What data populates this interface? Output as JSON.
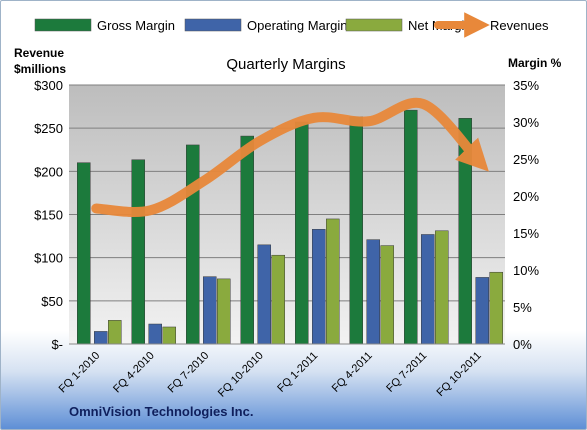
{
  "company": "OmniVision Technologies Inc.",
  "colors": {
    "gross_margin": "#1c7a3c",
    "operating_margin": "#3f64a8",
    "net_margin": "#8aaa3e",
    "revenues": "#e8883a",
    "plot_bg_top": "#bdbdbd",
    "plot_bg_bottom": "#f2f2f2"
  },
  "chart_data": {
    "type": "bar",
    "title": "Quarterly Margins",
    "ylabel_left": [
      "Revenue",
      "$millions"
    ],
    "ylabel_right": "Margin %",
    "categories": [
      "FQ 1-2010",
      "FQ 4-2010",
      "FQ 7-2010",
      "FQ 10-2010",
      "FQ 1-2011",
      "FQ 4-2011",
      "FQ 7-2011",
      "FQ 10-2011"
    ],
    "series": [
      {
        "name": "Gross Margin",
        "kind": "bar",
        "axis": "right",
        "values": [
          24.5,
          24.9,
          26.9,
          28.1,
          30.0,
          30.7,
          31.6,
          30.5
        ]
      },
      {
        "name": "Operating Margin",
        "kind": "bar",
        "axis": "right",
        "values": [
          1.7,
          2.7,
          9.1,
          13.4,
          15.5,
          14.1,
          14.8,
          9.0
        ]
      },
      {
        "name": "Net Margin",
        "kind": "bar",
        "axis": "right",
        "values": [
          3.2,
          2.3,
          8.8,
          12.0,
          16.9,
          13.3,
          15.3,
          9.7
        ]
      },
      {
        "name": "Revenues",
        "kind": "line",
        "axis": "left",
        "values": [
          157,
          155,
          190,
          235,
          262,
          258,
          278,
          213
        ]
      }
    ],
    "ylim_left": [
      0,
      300
    ],
    "ylim_right": [
      0,
      35
    ],
    "yticks_left": [
      "$-",
      "$50",
      "$100",
      "$150",
      "$200",
      "$250",
      "$300"
    ],
    "yticks_right": [
      "0%",
      "5%",
      "10%",
      "15%",
      "20%",
      "25%",
      "30%",
      "35%"
    ],
    "grid": true,
    "legend_position": "top"
  }
}
